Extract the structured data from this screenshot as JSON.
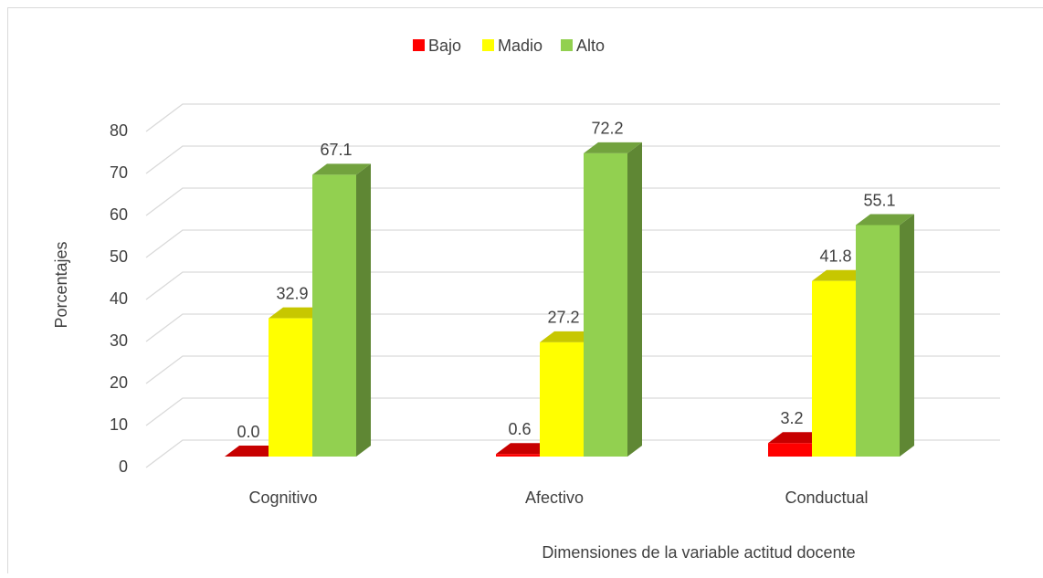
{
  "chart_data": {
    "type": "bar3d",
    "categories": [
      "Cognitivo",
      "Afectivo",
      "Conductual"
    ],
    "series": [
      {
        "name": "Bajo",
        "color": "#ff0000",
        "values": [
          0.0,
          0.6,
          3.2
        ],
        "value_labels": [
          "0.0",
          "0.6",
          "3.2"
        ]
      },
      {
        "name": "Madio",
        "color": "#ffff00",
        "values": [
          32.9,
          27.2,
          41.8
        ],
        "value_labels": [
          "32.9",
          "27.2",
          "41.8"
        ]
      },
      {
        "name": "Alto",
        "color": "#92d050",
        "values": [
          67.1,
          72.2,
          55.1
        ],
        "value_labels": [
          "67.1",
          "72.2",
          "55.1"
        ]
      }
    ],
    "y_label": "Porcentajes",
    "x_label": "Dimensiones de la variable actitud docente",
    "ylim": [
      0,
      80
    ],
    "yticks": [
      0,
      10,
      20,
      30,
      40,
      50,
      60,
      70,
      80
    ],
    "grid": true,
    "legend": "top"
  }
}
